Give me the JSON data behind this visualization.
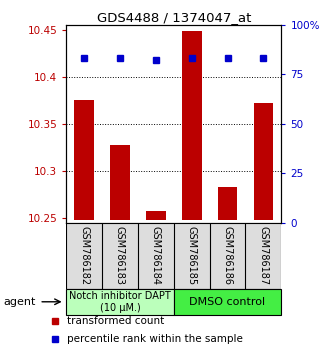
{
  "title": "GDS4488 / 1374047_at",
  "samples": [
    "GSM786182",
    "GSM786183",
    "GSM786184",
    "GSM786185",
    "GSM786186",
    "GSM786187"
  ],
  "red_values": [
    10.375,
    10.328,
    10.258,
    10.448,
    10.283,
    10.372
  ],
  "blue_values": [
    83,
    83,
    82,
    83,
    83,
    83
  ],
  "ylim_left": [
    10.245,
    10.455
  ],
  "ylim_right": [
    0,
    100
  ],
  "yticks_left": [
    10.25,
    10.3,
    10.35,
    10.4,
    10.45
  ],
  "ytick_labels_left": [
    "10.25",
    "10.3",
    "10.35",
    "10.4",
    "10.45"
  ],
  "yticks_right": [
    0,
    25,
    50,
    75,
    100
  ],
  "ytick_labels_right": [
    "0",
    "25",
    "50",
    "75",
    "100%"
  ],
  "bar_color": "#bb0000",
  "dot_color": "#0000cc",
  "bar_base": 10.248,
  "group1_label": "Notch inhibitor DAPT\n(10 μM.)",
  "group2_label": "DMSO control",
  "group1_color": "#bbffbb",
  "group2_color": "#44ee44",
  "agent_label": "agent",
  "legend1": "transformed count",
  "legend2": "percentile rank within the sample",
  "fig_width": 3.31,
  "fig_height": 3.54,
  "dpi": 100
}
